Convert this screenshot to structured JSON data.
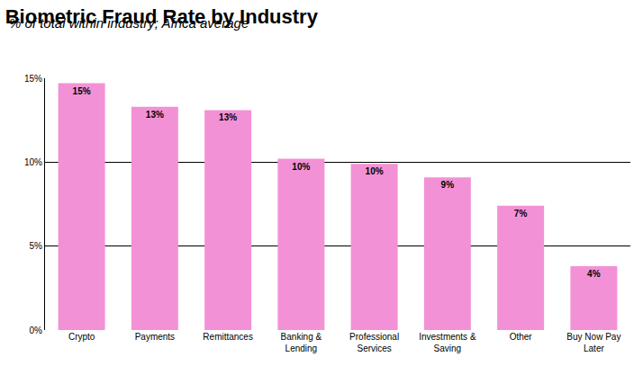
{
  "chart_data": {
    "type": "bar",
    "title": "Biometric Fraud Rate by Industry",
    "subtitle": "% of total within industry; Africa average",
    "categories": [
      "Crypto",
      "Payments",
      "Remittances",
      "Banking & Lending",
      "Professional Services",
      "Investments & Saving",
      "Other",
      "Buy Now Pay Later"
    ],
    "values": [
      14.7,
      13.3,
      13.1,
      10.2,
      9.9,
      9.1,
      7.4,
      3.8
    ],
    "value_labels": [
      "15%",
      "13%",
      "13%",
      "10%",
      "10%",
      "9%",
      "7%",
      "4%"
    ],
    "color": "#f391d6",
    "ylim": [
      0,
      15
    ],
    "yticks": [
      {
        "value": 0,
        "label": "0%"
      },
      {
        "value": 5,
        "label": "5%"
      },
      {
        "value": 10,
        "label": "10%"
      },
      {
        "value": 15,
        "label": "15%"
      }
    ],
    "grid": true,
    "data_labels": true
  }
}
